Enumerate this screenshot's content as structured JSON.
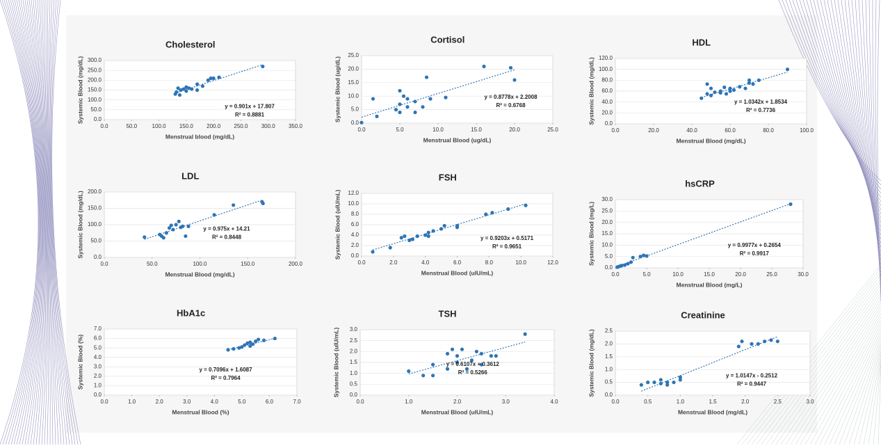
{
  "chart_data": [
    {
      "type": "scatter",
      "title": "Cholesterol",
      "x_label": "Menstrual blood (mg/dL)",
      "y_label": "Systemic Blood (mg/dL)",
      "color": "#2e75b6",
      "grid": true,
      "x": [
        130,
        132,
        135,
        138,
        140,
        145,
        150,
        150,
        155,
        160,
        170,
        170,
        180,
        190,
        195,
        200,
        210,
        290
      ],
      "values": [
        130,
        140,
        160,
        125,
        150,
        155,
        145,
        165,
        160,
        155,
        180,
        150,
        170,
        200,
        210,
        210,
        215,
        270
      ],
      "trendline": {
        "slope": 0.901,
        "intercept": 17.807
      },
      "equation": "y = 0.901x + 17.807",
      "r2": "R² = 0.8881",
      "xlim": [
        0,
        350
      ],
      "xticks": [
        {
          "value": 0,
          "label": "0.0"
        },
        {
          "value": 50,
          "label": "50.0"
        },
        {
          "value": 100,
          "label": "100.0"
        },
        {
          "value": 150,
          "label": "150.0"
        },
        {
          "value": 200,
          "label": "200.0"
        },
        {
          "value": 250,
          "label": "250.0"
        },
        {
          "value": 300,
          "label": "300.0"
        },
        {
          "value": 350,
          "label": "350.0"
        }
      ],
      "ylim": [
        0,
        300
      ],
      "yticks": [
        {
          "value": 0,
          "label": "0.0"
        },
        {
          "value": 50,
          "label": "50.0"
        },
        {
          "value": 100,
          "label": "100.0"
        },
        {
          "value": 150,
          "label": "150.0"
        },
        {
          "value": 200,
          "label": "200.0"
        },
        {
          "value": 250,
          "label": "250.0"
        },
        {
          "value": 300,
          "label": "300.0"
        }
      ]
    },
    {
      "type": "scatter",
      "title": "Cortisol",
      "x_label": "Menstrual Blood (ug/dL)",
      "y_label": "Systemic Blood (ug/dL)",
      "color": "#2e75b6",
      "grid": true,
      "x": [
        0,
        1.5,
        2,
        4.5,
        5,
        5,
        5,
        5.5,
        6,
        6,
        7,
        7,
        8,
        8.5,
        9,
        11,
        16,
        19.5,
        20
      ],
      "values": [
        0.2,
        9,
        2.5,
        5,
        12,
        7,
        4,
        10,
        6,
        9,
        8,
        4,
        6,
        17,
        9,
        9.5,
        21,
        20.5,
        16
      ],
      "trendline": {
        "slope": 0.8778,
        "intercept": 2.2008
      },
      "equation": "y = 0.8778x + 2.2008",
      "r2": "R² = 0.6768",
      "xlim": [
        0,
        25
      ],
      "xticks": [
        {
          "value": 0,
          "label": "0.0"
        },
        {
          "value": 5,
          "label": "5.0"
        },
        {
          "value": 10,
          "label": "10.0"
        },
        {
          "value": 15,
          "label": "15.0"
        },
        {
          "value": 20,
          "label": "20.0"
        },
        {
          "value": 25,
          "label": "25.0"
        }
      ],
      "ylim": [
        0,
        25
      ],
      "yticks": [
        {
          "value": 0,
          "label": "0.0"
        },
        {
          "value": 5,
          "label": "5.0"
        },
        {
          "value": 10,
          "label": "10.0"
        },
        {
          "value": 15,
          "label": "15.0"
        },
        {
          "value": 20,
          "label": "20.0"
        },
        {
          "value": 25,
          "label": "25.0"
        }
      ]
    },
    {
      "type": "scatter",
      "title": "HDL",
      "x_label": "Menstrual Blood (mg/dL)",
      "y_label": "Systemic Blood (mg/dL)",
      "color": "#2e75b6",
      "grid": true,
      "x": [
        45,
        48,
        48,
        50,
        50,
        52,
        55,
        55,
        57,
        58,
        60,
        60,
        62,
        65,
        68,
        70,
        70,
        72,
        75,
        90
      ],
      "values": [
        47,
        55,
        73,
        65,
        52,
        58,
        60,
        57,
        67,
        55,
        60,
        65,
        62,
        68,
        65,
        80,
        75,
        73,
        80,
        100
      ],
      "trendline": {
        "slope": 1.0342,
        "intercept": 1.8534
      },
      "equation": "y = 1.0342x + 1.8534",
      "r2": "R² = 0.7736",
      "xlim": [
        0,
        100
      ],
      "xticks": [
        {
          "value": 0,
          "label": "0.0"
        },
        {
          "value": 20,
          "label": "20.0"
        },
        {
          "value": 40,
          "label": "40.0"
        },
        {
          "value": 60,
          "label": "60.0"
        },
        {
          "value": 80,
          "label": "80.0"
        },
        {
          "value": 100,
          "label": "100.0"
        }
      ],
      "ylim": [
        0,
        120
      ],
      "yticks": [
        {
          "value": 0,
          "label": "0.0"
        },
        {
          "value": 20,
          "label": "20.0"
        },
        {
          "value": 40,
          "label": "40.0"
        },
        {
          "value": 60,
          "label": "60.0"
        },
        {
          "value": 80,
          "label": "80.0"
        },
        {
          "value": 100,
          "label": "100.0"
        },
        {
          "value": 120,
          "label": "120.0"
        }
      ]
    },
    {
      "type": "scatter",
      "title": "LDL",
      "x_label": "Menstrual Blood (mg/dL)",
      "y_label": "Systemic Blood (mg/dL)",
      "color": "#2e75b6",
      "grid": true,
      "x": [
        42,
        58,
        60,
        62,
        65,
        68,
        70,
        72,
        75,
        78,
        80,
        82,
        85,
        88,
        115,
        135,
        165,
        166
      ],
      "values": [
        62,
        70,
        65,
        60,
        75,
        90,
        98,
        85,
        100,
        110,
        92,
        95,
        65,
        95,
        130,
        160,
        170,
        165
      ],
      "trendline": {
        "slope": 0.975,
        "intercept": 14.21
      },
      "equation": "y = 0.975x + 14.21",
      "r2": "R² = 0.8448",
      "xlim": [
        0,
        200
      ],
      "xticks": [
        {
          "value": 0,
          "label": "0.0"
        },
        {
          "value": 50,
          "label": "50.0"
        },
        {
          "value": 100,
          "label": "100.0"
        },
        {
          "value": 150,
          "label": "150.0"
        },
        {
          "value": 200,
          "label": "200.0"
        }
      ],
      "ylim": [
        0,
        200
      ],
      "yticks": [
        {
          "value": 0,
          "label": "0.0"
        },
        {
          "value": 50,
          "label": "50.0"
        },
        {
          "value": 100,
          "label": "100.0"
        },
        {
          "value": 150,
          "label": "150.0"
        },
        {
          "value": 200,
          "label": "200.0"
        }
      ]
    },
    {
      "type": "scatter",
      "title": "FSH",
      "x_label": "Menstrual Blood (uIU/mL)",
      "y_label": "Systemic Blood (uIU/mL)",
      "color": "#2e75b6",
      "grid": true,
      "x": [
        0.7,
        1.8,
        2.5,
        2.7,
        3,
        3.2,
        3.5,
        4,
        4.2,
        4.2,
        4.5,
        5,
        5.2,
        6,
        6,
        7.8,
        8.2,
        9.2,
        10.3
      ],
      "values": [
        0.8,
        1.6,
        3.5,
        3.8,
        3,
        3.2,
        3.8,
        4,
        4.5,
        3.8,
        4.8,
        5.2,
        5.8,
        5.5,
        5.8,
        8,
        8.3,
        9,
        9.7
      ],
      "trendline": {
        "slope": 0.9203,
        "intercept": 0.5171
      },
      "equation": "y = 0.9203x + 0.5171",
      "r2": "R² = 0.9651",
      "xlim": [
        0,
        12
      ],
      "xticks": [
        {
          "value": 0,
          "label": "0.0"
        },
        {
          "value": 2,
          "label": "2.0"
        },
        {
          "value": 4,
          "label": "4.0"
        },
        {
          "value": 6,
          "label": "6.0"
        },
        {
          "value": 8,
          "label": "8.0"
        },
        {
          "value": 10,
          "label": "10.0"
        },
        {
          "value": 12,
          "label": "12.0"
        }
      ],
      "ylim": [
        0,
        12
      ],
      "yticks": [
        {
          "value": 0,
          "label": "0.0"
        },
        {
          "value": 2,
          "label": "2.0"
        },
        {
          "value": 4,
          "label": "4.0"
        },
        {
          "value": 6,
          "label": "6.0"
        },
        {
          "value": 8,
          "label": "8.0"
        },
        {
          "value": 10,
          "label": "10.0"
        },
        {
          "value": 12,
          "label": "12.0"
        }
      ]
    },
    {
      "type": "scatter",
      "title": "hsCRP",
      "x_label": "Menstrual Blood (mg/L)",
      "y_label": "Systemic Blood (mg/L)",
      "color": "#2e75b6",
      "grid": true,
      "x": [
        0.3,
        0.5,
        0.8,
        1,
        1.5,
        2,
        2.5,
        2.8,
        4,
        4.5,
        5,
        28
      ],
      "values": [
        0.3,
        0.5,
        0.8,
        1,
        1.2,
        1.8,
        2.5,
        4.5,
        5,
        5.5,
        5.2,
        28
      ],
      "trendline": {
        "slope": 0.9977,
        "intercept": 0.2654
      },
      "equation": "y = 0.9977x + 0.2654",
      "r2": "R² = 0.9917",
      "xlim": [
        0,
        30
      ],
      "xticks": [
        {
          "value": 0,
          "label": "0.0"
        },
        {
          "value": 5,
          "label": "5.0"
        },
        {
          "value": 10,
          "label": "10.0"
        },
        {
          "value": 15,
          "label": "15.0"
        },
        {
          "value": 20,
          "label": "20.0"
        },
        {
          "value": 25,
          "label": "25.0"
        },
        {
          "value": 30,
          "label": "30.0"
        }
      ],
      "ylim": [
        0,
        30
      ],
      "yticks": [
        {
          "value": 0,
          "label": "0.0"
        },
        {
          "value": 5,
          "label": "5.0"
        },
        {
          "value": 10,
          "label": "10.0"
        },
        {
          "value": 15,
          "label": "15.0"
        },
        {
          "value": 20,
          "label": "20.0"
        },
        {
          "value": 25,
          "label": "25.0"
        },
        {
          "value": 30,
          "label": "30.0"
        }
      ]
    },
    {
      "type": "scatter",
      "title": "HbA1c",
      "x_label": "Menstrual Blood (%)",
      "y_label": "Systemic Blood (%)",
      "color": "#2e75b6",
      "grid": true,
      "x": [
        4.5,
        4.7,
        4.9,
        5,
        5.1,
        5.2,
        5.3,
        5.3,
        5.4,
        5.5,
        5.6,
        5.8,
        6.2
      ],
      "values": [
        4.8,
        4.9,
        5,
        5.1,
        5.3,
        5.5,
        5.2,
        5.6,
        5.4,
        5.7,
        5.9,
        5.8,
        6
      ],
      "trendline": {
        "slope": 0.7096,
        "intercept": 1.6087
      },
      "equation": "y = 0.7096x + 1.6087",
      "r2": "R² = 0.7964",
      "xlim": [
        0,
        7
      ],
      "xticks": [
        {
          "value": 0,
          "label": "0.0"
        },
        {
          "value": 1,
          "label": "1.0"
        },
        {
          "value": 2,
          "label": "2.0"
        },
        {
          "value": 3,
          "label": "3.0"
        },
        {
          "value": 4,
          "label": "4.0"
        },
        {
          "value": 5,
          "label": "5.0"
        },
        {
          "value": 6,
          "label": "6.0"
        },
        {
          "value": 7,
          "label": "7.0"
        }
      ],
      "ylim": [
        0,
        7
      ],
      "yticks": [
        {
          "value": 0,
          "label": "0.0"
        },
        {
          "value": 1,
          "label": "1.0"
        },
        {
          "value": 2,
          "label": "2.0"
        },
        {
          "value": 3,
          "label": "3.0"
        },
        {
          "value": 4,
          "label": "4.0"
        },
        {
          "value": 5,
          "label": "5.0"
        },
        {
          "value": 6,
          "label": "6.0"
        },
        {
          "value": 7,
          "label": "7.0"
        }
      ]
    },
    {
      "type": "scatter",
      "title": "TSH",
      "x_label": "Menstrual Blood (uIU/mL)",
      "y_label": "Systemic Blood (uIU/mL)",
      "color": "#2e75b6",
      "grid": true,
      "x": [
        1,
        1.3,
        1.5,
        1.5,
        1.8,
        1.8,
        1.9,
        2,
        2,
        2.1,
        2.2,
        2.3,
        2.4,
        2.5,
        2.5,
        2.7,
        2.8,
        3.4
      ],
      "values": [
        1.1,
        0.9,
        0.9,
        1.4,
        1.9,
        1.2,
        2.1,
        1.5,
        1.8,
        2.1,
        1.2,
        1.6,
        2,
        1.4,
        1.9,
        1.8,
        1.8,
        2.8
      ],
      "trendline": {
        "slope": 0.6107,
        "intercept": 0.3612
      },
      "equation": "y = 0.6107x + 0.3612",
      "r2": "R² = 0.5266",
      "xlim": [
        0,
        4
      ],
      "xticks": [
        {
          "value": 0,
          "label": "0.0"
        },
        {
          "value": 1,
          "label": "1.0"
        },
        {
          "value": 2,
          "label": "2.0"
        },
        {
          "value": 3,
          "label": "3.0"
        },
        {
          "value": 4,
          "label": "4.0"
        }
      ],
      "ylim": [
        0,
        3
      ],
      "yticks": [
        {
          "value": 0,
          "label": "0.0"
        },
        {
          "value": 0.5,
          "label": "0.5"
        },
        {
          "value": 1,
          "label": "1.0"
        },
        {
          "value": 1.5,
          "label": "1.5"
        },
        {
          "value": 2,
          "label": "2.0"
        },
        {
          "value": 2.5,
          "label": "2.5"
        },
        {
          "value": 3,
          "label": "3.0"
        }
      ]
    },
    {
      "type": "scatter",
      "title": "Creatinine",
      "x_label": "Menstrual Blood (mg/dL)",
      "y_label": "Systemic Blood (mg/dL)",
      "color": "#2e75b6",
      "grid": true,
      "x": [
        0.4,
        0.5,
        0.6,
        0.7,
        0.7,
        0.8,
        0.8,
        0.9,
        1,
        1,
        1.9,
        1.95,
        2.1,
        2.2,
        2.3,
        2.4,
        2.5
      ],
      "values": [
        0.4,
        0.5,
        0.5,
        0.6,
        0.45,
        0.4,
        0.5,
        0.5,
        0.6,
        0.7,
        1.9,
        2.1,
        2,
        2,
        2.1,
        2.15,
        2.1
      ],
      "trendline": {
        "slope": 1.0147,
        "intercept": -0.2512
      },
      "equation": "y = 1.0147x - 0.2512",
      "r2": "R² = 0.9447",
      "xlim": [
        0,
        3
      ],
      "xticks": [
        {
          "value": 0,
          "label": "0.0"
        },
        {
          "value": 0.5,
          "label": "0.5"
        },
        {
          "value": 1,
          "label": "1.0"
        },
        {
          "value": 1.5,
          "label": "1.5"
        },
        {
          "value": 2,
          "label": "2.0"
        },
        {
          "value": 2.5,
          "label": "2.5"
        },
        {
          "value": 3,
          "label": "3.0"
        }
      ],
      "ylim": [
        0,
        2.5
      ],
      "yticks": [
        {
          "value": 0,
          "label": "0.0"
        },
        {
          "value": 0.5,
          "label": "0.5"
        },
        {
          "value": 1,
          "label": "1.0"
        },
        {
          "value": 1.5,
          "label": "1.5"
        },
        {
          "value": 2,
          "label": "2.0"
        },
        {
          "value": 2.5,
          "label": "2.5"
        }
      ]
    }
  ]
}
